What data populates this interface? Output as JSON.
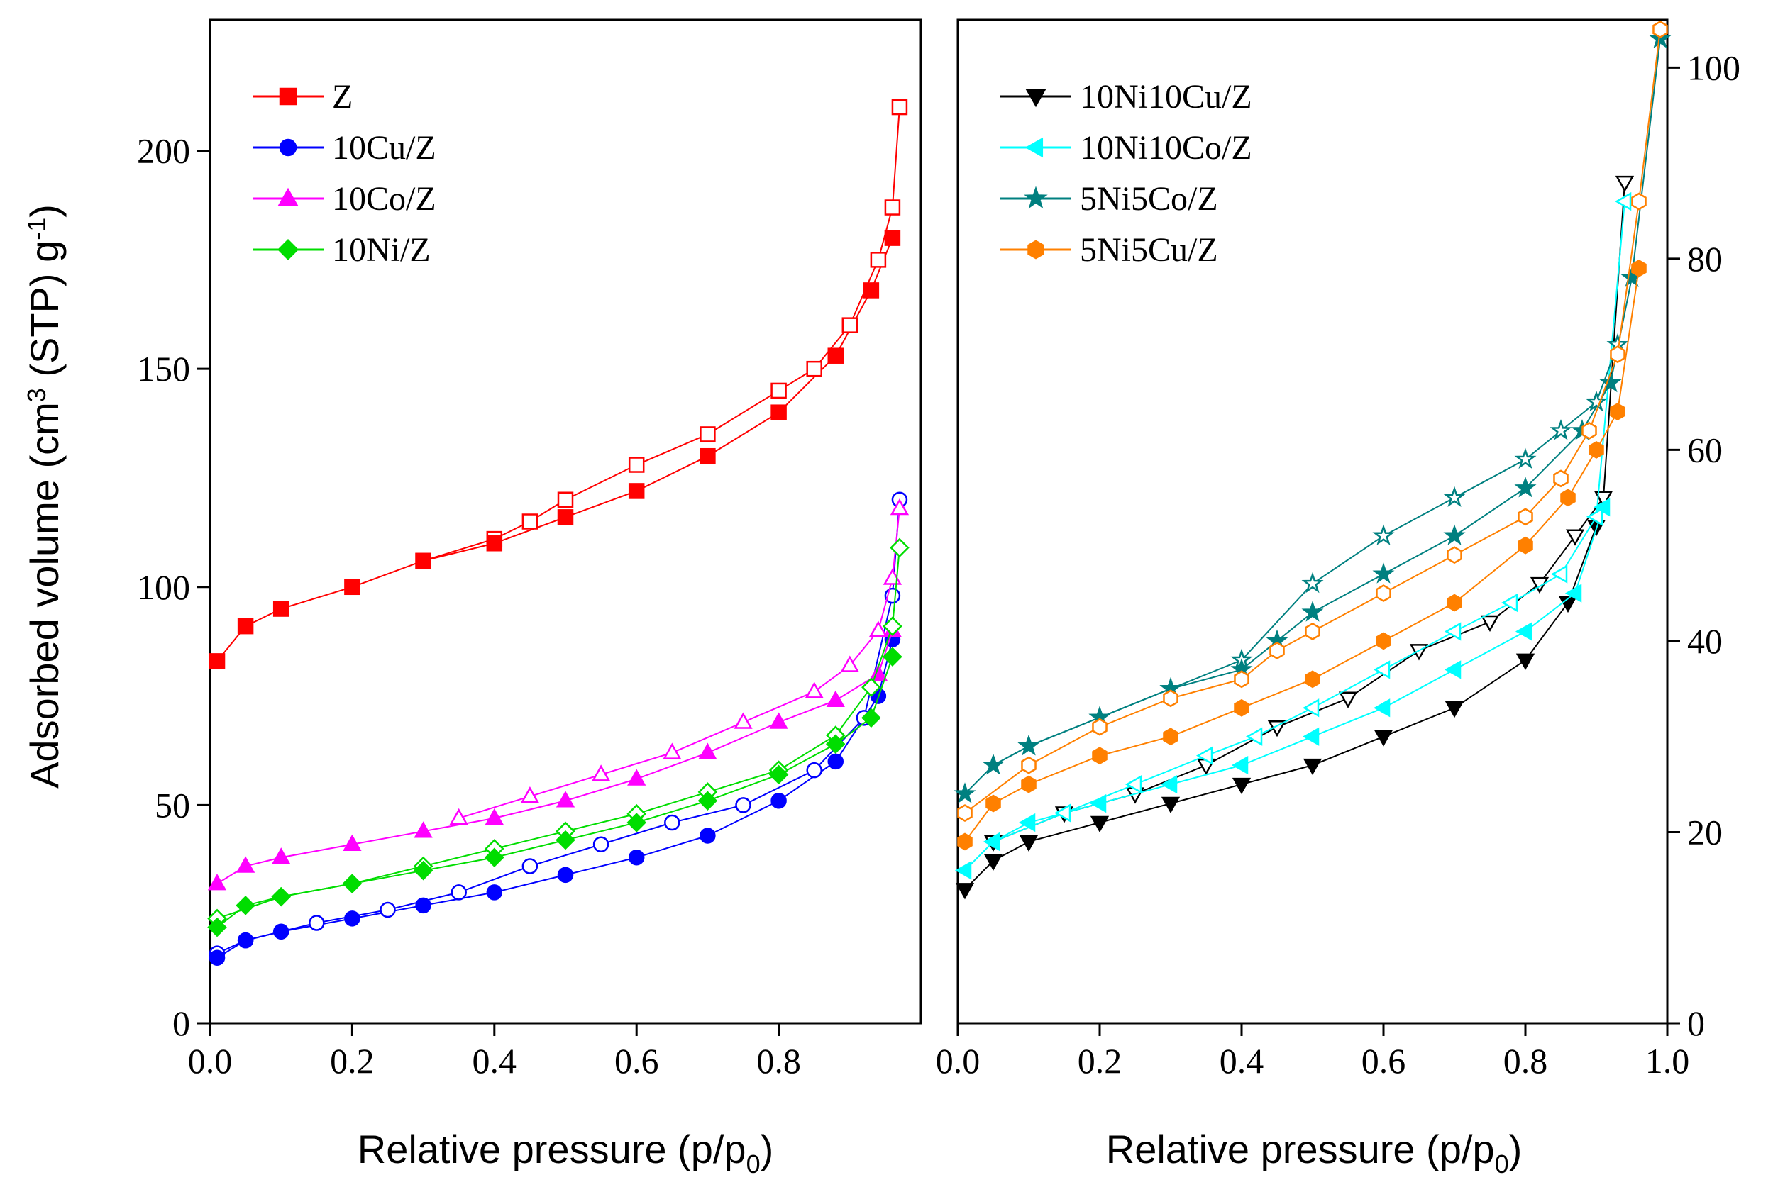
{
  "chart_data": [
    {
      "type": "scatter",
      "ylabel_main": "Adsorbed volume (cm",
      "ylabel_sup3": "3",
      "ylabel_mid": " (STP) g",
      "ylabel_sup": "-1",
      "ylabel_end": ")",
      "xlabel_main": "Relative pressure (p/p",
      "xlabel_sub": "0",
      "xlabel_end": ")",
      "xlim": [
        0,
        1.0
      ],
      "ylim": [
        0,
        230
      ],
      "xticks": [
        "0.0",
        "0.2",
        "0.4",
        "0.6",
        "0.8"
      ],
      "xtick_values": [
        0,
        0.2,
        0.4,
        0.6,
        0.8
      ],
      "yticks": [
        "0",
        "50",
        "100",
        "150",
        "200"
      ],
      "ytick_values": [
        0,
        50,
        100,
        150,
        200
      ],
      "series": [
        {
          "name": " Z",
          "color": "#ff0000",
          "marker": "square",
          "ads_x": [
            0.01,
            0.05,
            0.1,
            0.2,
            0.3,
            0.4,
            0.5,
            0.6,
            0.7,
            0.8,
            0.88,
            0.93,
            0.96
          ],
          "ads_y": [
            83,
            91,
            95,
            100,
            106,
            110,
            116,
            122,
            130,
            140,
            153,
            168,
            180
          ],
          "des_x": [
            0.97,
            0.96,
            0.94,
            0.9,
            0.85,
            0.8,
            0.7,
            0.6,
            0.5,
            0.45,
            0.4,
            0.3
          ],
          "des_y": [
            210,
            187,
            175,
            160,
            150,
            145,
            135,
            128,
            120,
            115,
            111,
            106
          ]
        },
        {
          "name": "10Cu/Z",
          "color": "#0000ff",
          "marker": "circle",
          "ads_x": [
            0.01,
            0.05,
            0.1,
            0.2,
            0.3,
            0.4,
            0.5,
            0.6,
            0.7,
            0.8,
            0.88,
            0.94,
            0.96
          ],
          "ads_y": [
            15,
            19,
            21,
            24,
            27,
            30,
            34,
            38,
            43,
            51,
            60,
            75,
            88
          ],
          "des_x": [
            0.97,
            0.96,
            0.92,
            0.85,
            0.75,
            0.65,
            0.55,
            0.45,
            0.35,
            0.25,
            0.15,
            0.05,
            0.01
          ],
          "des_y": [
            120,
            98,
            70,
            58,
            50,
            46,
            41,
            36,
            30,
            26,
            23,
            19,
            16
          ]
        },
        {
          "name": "10Co/Z",
          "color": "#ff00ff",
          "marker": "triangle",
          "ads_x": [
            0.01,
            0.05,
            0.1,
            0.2,
            0.3,
            0.4,
            0.5,
            0.6,
            0.7,
            0.8,
            0.88,
            0.94,
            0.96
          ],
          "ads_y": [
            32,
            36,
            38,
            41,
            44,
            47,
            51,
            56,
            62,
            69,
            74,
            80,
            90
          ],
          "des_x": [
            0.97,
            0.96,
            0.94,
            0.9,
            0.85,
            0.75,
            0.65,
            0.55,
            0.45,
            0.35
          ],
          "des_y": [
            118,
            102,
            90,
            82,
            76,
            69,
            62,
            57,
            52,
            47
          ]
        },
        {
          "name": "10Ni/Z",
          "color": "#00dd00",
          "marker": "diamond",
          "ads_x": [
            0.01,
            0.05,
            0.1,
            0.2,
            0.3,
            0.4,
            0.5,
            0.6,
            0.7,
            0.8,
            0.88,
            0.93,
            0.96
          ],
          "ads_y": [
            22,
            27,
            29,
            32,
            35,
            38,
            42,
            46,
            51,
            57,
            64,
            70,
            84
          ],
          "des_x": [
            0.97,
            0.96,
            0.93,
            0.88,
            0.8,
            0.7,
            0.6,
            0.5,
            0.4,
            0.3,
            0.2,
            0.1,
            0.01
          ],
          "des_y": [
            109,
            91,
            77,
            66,
            58,
            53,
            48,
            44,
            40,
            36,
            32,
            29,
            24
          ]
        }
      ],
      "legend": "top-left"
    },
    {
      "type": "scatter",
      "xlim": [
        0,
        1.0
      ],
      "ylim": [
        0,
        105
      ],
      "xticks": [
        "0.0",
        "0.2",
        "0.4",
        "0.6",
        "0.8",
        "1.0"
      ],
      "xtick_values": [
        0,
        0.2,
        0.4,
        0.6,
        0.8,
        1.0
      ],
      "yticks": [
        "0",
        "20",
        "40",
        "60",
        "80",
        "100"
      ],
      "ytick_values": [
        0,
        20,
        40,
        60,
        80,
        100
      ],
      "xlabel_main": "Relative pressure (p/p",
      "xlabel_sub": "0",
      "xlabel_end": ")",
      "series": [
        {
          "name": "10Ni10Cu/Z",
          "color": "#000000",
          "marker": "triangle-down",
          "ads_x": [
            0.01,
            0.05,
            0.1,
            0.2,
            0.3,
            0.4,
            0.5,
            0.6,
            0.7,
            0.8,
            0.86,
            0.9
          ],
          "ads_y": [
            14,
            17,
            19,
            21,
            23,
            25,
            27,
            30,
            33,
            38,
            44,
            52
          ],
          "des_x": [
            0.94,
            0.91,
            0.87,
            0.82,
            0.75,
            0.65,
            0.55,
            0.45,
            0.35,
            0.25,
            0.15,
            0.05
          ],
          "des_y": [
            88,
            55,
            51,
            46,
            42,
            39,
            34,
            31,
            27,
            24,
            22,
            19
          ]
        },
        {
          "name": "10Ni10Co/Z",
          "color": "#00ffff",
          "marker": "triangle-left",
          "ads_x": [
            0.01,
            0.05,
            0.1,
            0.2,
            0.3,
            0.4,
            0.5,
            0.6,
            0.7,
            0.8,
            0.87,
            0.91
          ],
          "ads_y": [
            16,
            19,
            21,
            23,
            25,
            27,
            30,
            33,
            37,
            41,
            45,
            54
          ],
          "des_x": [
            0.94,
            0.9,
            0.85,
            0.78,
            0.7,
            0.6,
            0.5,
            0.42,
            0.35,
            0.25,
            0.15,
            0.05
          ],
          "des_y": [
            86,
            53,
            47,
            44,
            41,
            37,
            33,
            30,
            28,
            25,
            22,
            19
          ]
        },
        {
          "name": "5Ni5Co/Z",
          "color": "#008080",
          "marker": "star",
          "ads_x": [
            0.01,
            0.05,
            0.1,
            0.2,
            0.3,
            0.4,
            0.45,
            0.5,
            0.6,
            0.7,
            0.8,
            0.88,
            0.92,
            0.95,
            0.99
          ],
          "ads_y": [
            24,
            27,
            29,
            32,
            35,
            37,
            40,
            43,
            47,
            51,
            56,
            62,
            67,
            78,
            103
          ],
          "des_x": [
            0.93,
            0.9,
            0.85,
            0.8,
            0.7,
            0.6,
            0.5,
            0.4,
            0.3,
            0.2,
            0.1,
            0.05
          ],
          "des_y": [
            71,
            65,
            62,
            59,
            55,
            51,
            46,
            38,
            35,
            32,
            29,
            27
          ]
        },
        {
          "name": "5Ni5Cu/Z",
          "color": "#ff8000",
          "marker": "hexagon",
          "ads_x": [
            0.01,
            0.05,
            0.1,
            0.2,
            0.3,
            0.4,
            0.5,
            0.6,
            0.7,
            0.8,
            0.86,
            0.9,
            0.93,
            0.96
          ],
          "ads_y": [
            19,
            23,
            25,
            28,
            30,
            33,
            36,
            40,
            44,
            50,
            55,
            60,
            64,
            79
          ],
          "des_x": [
            0.99,
            0.96,
            0.93,
            0.89,
            0.85,
            0.8,
            0.7,
            0.6,
            0.5,
            0.45,
            0.4,
            0.3,
            0.2,
            0.1,
            0.01
          ],
          "des_y": [
            104,
            86,
            70,
            62,
            57,
            53,
            49,
            45,
            41,
            39,
            36,
            34,
            31,
            27,
            22
          ]
        }
      ],
      "legend": "top-left"
    }
  ]
}
